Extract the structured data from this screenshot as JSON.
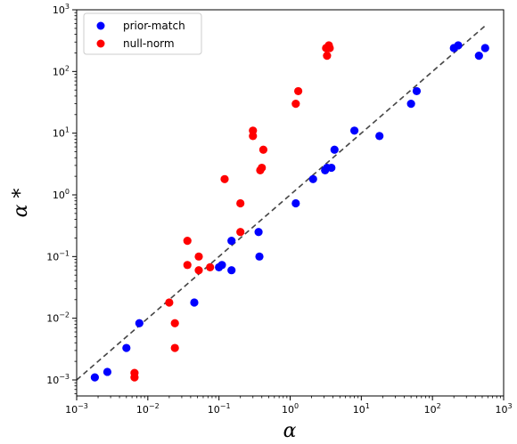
{
  "chart_data": {
    "type": "scatter",
    "title": "",
    "xlabel": "α",
    "ylabel": "α *",
    "xscale": "log",
    "yscale": "log",
    "xlim": [
      0.001,
      1000
    ],
    "ylim": [
      0.00055,
      1000
    ],
    "grid": false,
    "legend_position": "top-left",
    "ticks": [
      {
        "value": 0.001,
        "base": "10",
        "exp": "−3"
      },
      {
        "value": 0.01,
        "base": "10",
        "exp": "−2"
      },
      {
        "value": 0.1,
        "base": "10",
        "exp": "−1"
      },
      {
        "value": 1,
        "base": "10",
        "exp": "0"
      },
      {
        "value": 10,
        "base": "10",
        "exp": "1"
      },
      {
        "value": 100,
        "base": "10",
        "exp": "2"
      },
      {
        "value": 1000,
        "base": "10",
        "exp": "3"
      }
    ],
    "reference_line": {
      "style": "dashed",
      "color": "#444444",
      "x": [
        0.001,
        560
      ],
      "y": [
        0.001,
        560
      ]
    },
    "series": [
      {
        "name": "prior-match",
        "color": "#0000ff",
        "points": [
          [
            0.0018,
            0.0011
          ],
          [
            0.0027,
            0.00135
          ],
          [
            0.005,
            0.0033
          ],
          [
            0.0076,
            0.0083
          ],
          [
            0.045,
            0.018
          ],
          [
            0.1,
            0.067
          ],
          [
            0.11,
            0.073
          ],
          [
            0.15,
            0.06
          ],
          [
            0.15,
            0.18
          ],
          [
            0.36,
            0.25
          ],
          [
            0.37,
            0.1
          ],
          [
            1.2,
            0.73
          ],
          [
            2.1,
            1.8
          ],
          [
            3.1,
            2.5
          ],
          [
            3.3,
            2.75
          ],
          [
            3.8,
            2.75
          ],
          [
            4.2,
            5.4
          ],
          [
            8.0,
            11.0
          ],
          [
            18.0,
            9.0
          ],
          [
            50.0,
            30.0
          ],
          [
            60.0,
            48.0
          ],
          [
            200.0,
            240.0
          ],
          [
            230.0,
            265.0
          ],
          [
            450.0,
            180.0
          ],
          [
            550.0,
            240.0
          ]
        ]
      },
      {
        "name": "null-norm",
        "color": "#ff0000",
        "points": [
          [
            0.0065,
            0.0013
          ],
          [
            0.0065,
            0.0011
          ],
          [
            0.02,
            0.018
          ],
          [
            0.024,
            0.0083
          ],
          [
            0.024,
            0.0033
          ],
          [
            0.036,
            0.18
          ],
          [
            0.036,
            0.073
          ],
          [
            0.052,
            0.1
          ],
          [
            0.052,
            0.06
          ],
          [
            0.075,
            0.067
          ],
          [
            0.12,
            1.8
          ],
          [
            0.2,
            0.73
          ],
          [
            0.2,
            0.25
          ],
          [
            0.3,
            11.0
          ],
          [
            0.3,
            9.0
          ],
          [
            0.38,
            2.5
          ],
          [
            0.4,
            2.75
          ],
          [
            0.42,
            5.4
          ],
          [
            1.2,
            30.0
          ],
          [
            1.3,
            48.0
          ],
          [
            3.2,
            240.0
          ],
          [
            3.3,
            180.0
          ],
          [
            3.5,
            265.0
          ],
          [
            3.6,
            240.0
          ]
        ]
      }
    ]
  }
}
